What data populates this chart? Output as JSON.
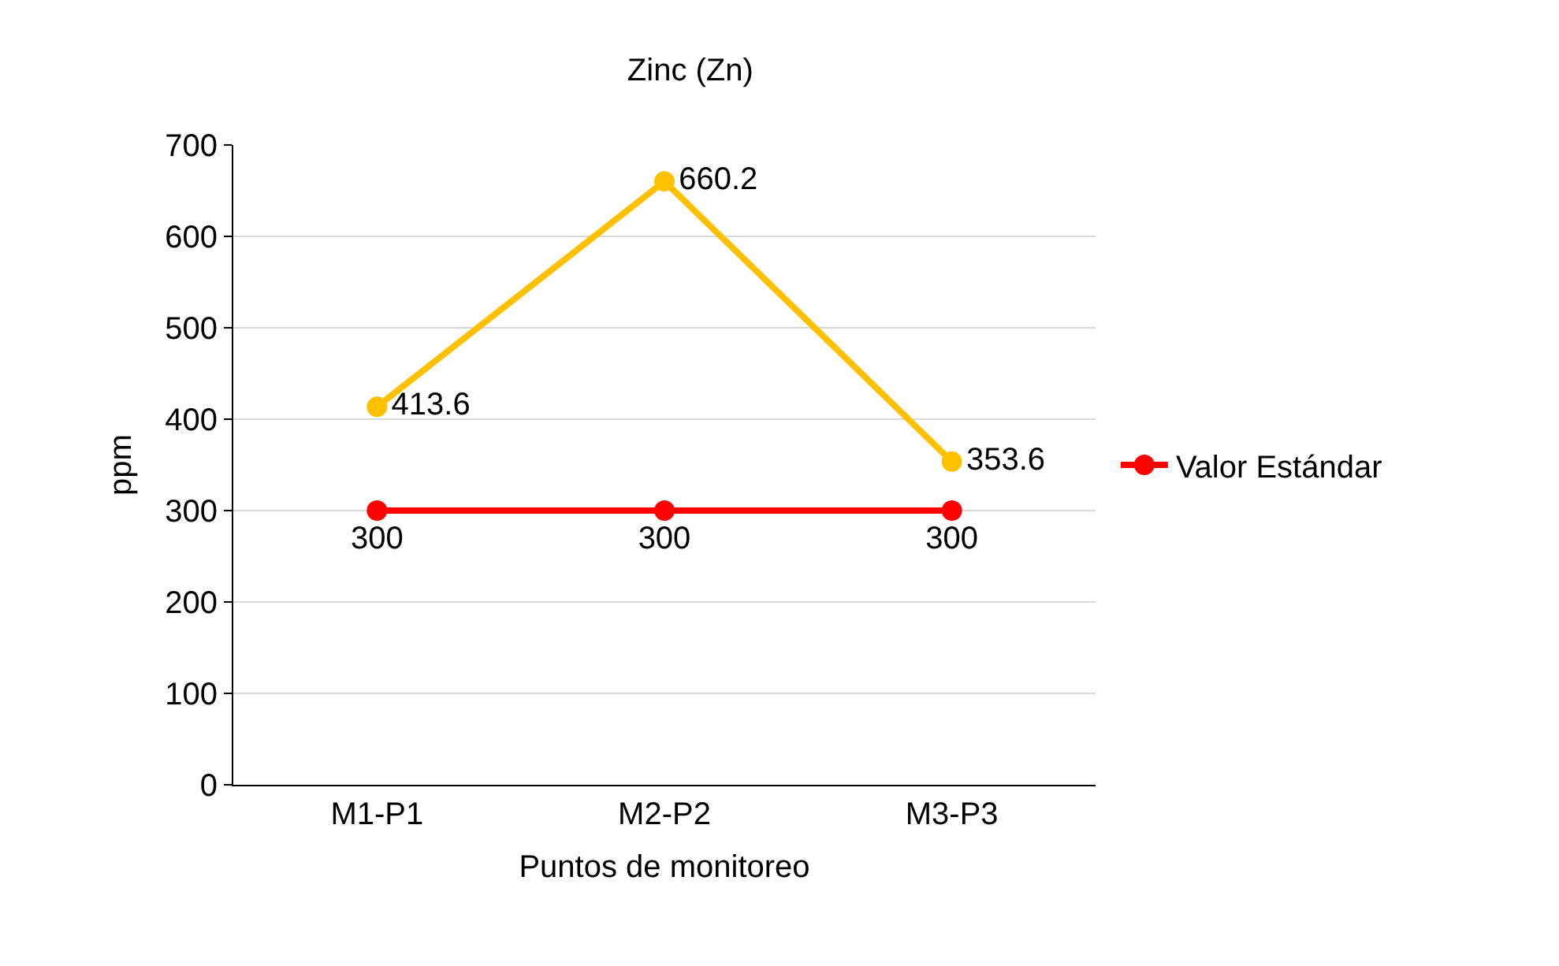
{
  "chart_data": {
    "type": "line",
    "title": "Zinc (Zn)",
    "xlabel": "Puntos de monitoreo",
    "ylabel": "ppm",
    "categories": [
      "M1-P1",
      "M2-P2",
      "M3-P3"
    ],
    "series": [
      {
        "color": "#ffc000",
        "values": [
          413.6,
          660.2,
          353.6
        ]
      },
      {
        "name": "Valor Estándar",
        "color": "#ff0000",
        "values": [
          300,
          300,
          300
        ]
      }
    ],
    "ylim": [
      0,
      700
    ],
    "yticks": [
      0,
      100,
      200,
      300,
      400,
      500,
      600,
      700
    ],
    "grid": "y",
    "legend": "right",
    "marker": "circle",
    "line_style": "solid",
    "data_labels": true
  }
}
